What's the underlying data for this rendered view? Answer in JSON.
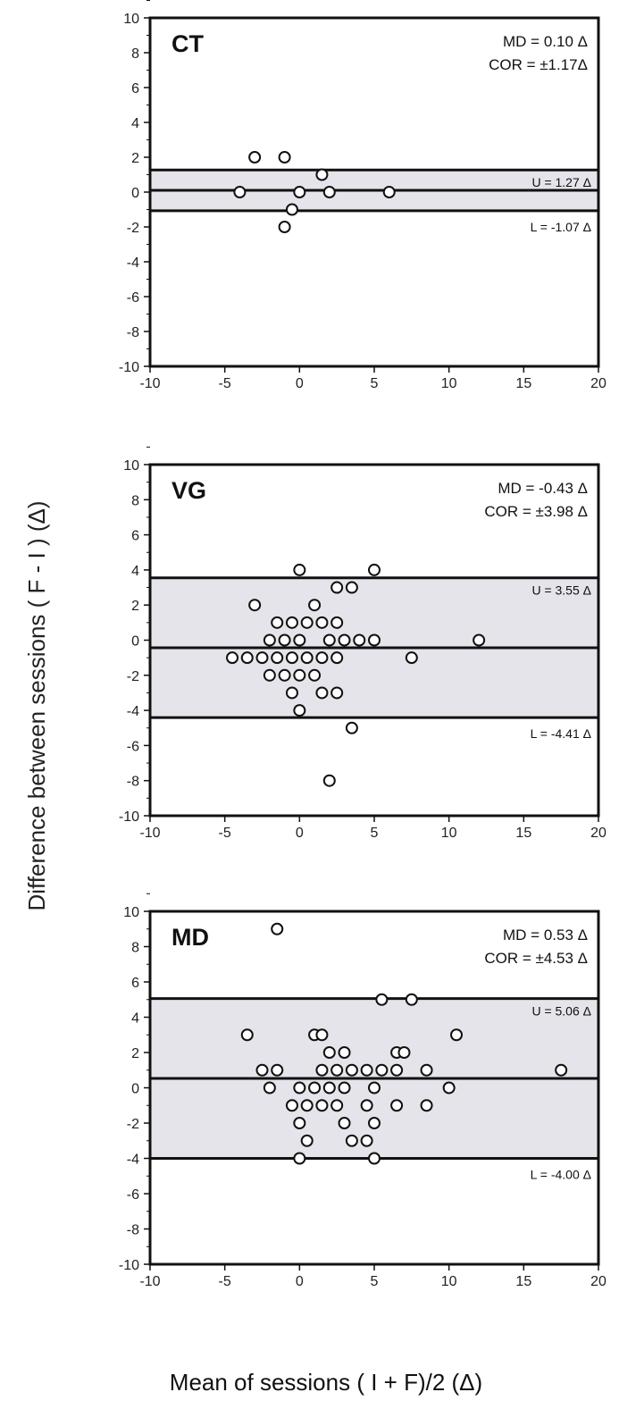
{
  "ylabel": "Difference between sessions ( F - I )   (Δ)",
  "xlabel": "Mean of sessions ( I + F)/2   (Δ)",
  "chart_data": [
    {
      "type": "scatter",
      "title": "CT",
      "md_label": "MD = 0.10 Δ",
      "cor_label": "COR = ±1.17Δ",
      "upper_label": "U = 1.27 Δ",
      "lower_label": "L = -1.07 Δ",
      "md": 0.1,
      "upper": 1.27,
      "lower": -1.07,
      "xlim": [
        -10,
        20
      ],
      "ylim": [
        -10,
        10
      ],
      "xticks": [
        "-10",
        "-5",
        "0",
        "5",
        "10",
        "15",
        "20"
      ],
      "yticks": [
        "10",
        "8",
        "6",
        "4",
        "2",
        "0",
        "-2",
        "-4",
        "-6",
        "-8",
        "-10"
      ],
      "points": [
        [
          -3,
          2
        ],
        [
          -1,
          2
        ],
        [
          1.5,
          1
        ],
        [
          -4,
          0
        ],
        [
          0,
          0
        ],
        [
          2,
          0
        ],
        [
          6,
          0
        ],
        [
          -0.5,
          -1
        ],
        [
          -1,
          -2
        ]
      ]
    },
    {
      "type": "scatter",
      "title": "VG",
      "md_label": "MD = -0.43 Δ",
      "cor_label": "COR = ±3.98 Δ",
      "upper_label": "U = 3.55 Δ",
      "lower_label": "L = -4.41 Δ",
      "md": -0.43,
      "upper": 3.55,
      "lower": -4.41,
      "xlim": [
        -10,
        20
      ],
      "ylim": [
        -10,
        10
      ],
      "xticks": [
        "-10",
        "-5",
        "0",
        "5",
        "10",
        "15",
        "20"
      ],
      "yticks": [
        "10",
        "8",
        "6",
        "4",
        "2",
        "0",
        "-2",
        "-4",
        "-6",
        "-8",
        "-10"
      ],
      "points": [
        [
          0,
          4
        ],
        [
          5,
          4
        ],
        [
          2.5,
          3
        ],
        [
          3.5,
          3
        ],
        [
          -3,
          2
        ],
        [
          1,
          2
        ],
        [
          -1.5,
          1
        ],
        [
          -0.5,
          1
        ],
        [
          0.5,
          1
        ],
        [
          1.5,
          1
        ],
        [
          2.5,
          1
        ],
        [
          -2,
          0
        ],
        [
          -1,
          0
        ],
        [
          0,
          0
        ],
        [
          2,
          0
        ],
        [
          3,
          0
        ],
        [
          4,
          0
        ],
        [
          5,
          0
        ],
        [
          12,
          0
        ],
        [
          -4.5,
          -1
        ],
        [
          -3.5,
          -1
        ],
        [
          -2.5,
          -1
        ],
        [
          -1.5,
          -1
        ],
        [
          -0.5,
          -1
        ],
        [
          0.5,
          -1
        ],
        [
          1.5,
          -1
        ],
        [
          2.5,
          -1
        ],
        [
          7.5,
          -1
        ],
        [
          -2,
          -2
        ],
        [
          -1,
          -2
        ],
        [
          0,
          -2
        ],
        [
          1,
          -2
        ],
        [
          -0.5,
          -3
        ],
        [
          1.5,
          -3
        ],
        [
          2.5,
          -3
        ],
        [
          0,
          -4
        ],
        [
          3.5,
          -5
        ],
        [
          2,
          -8
        ]
      ]
    },
    {
      "type": "scatter",
      "title": "MD",
      "md_label": "MD = 0.53 Δ",
      "cor_label": "COR = ±4.53 Δ",
      "upper_label": "U = 5.06 Δ",
      "lower_label": "L = -4.00 Δ",
      "md": 0.53,
      "upper": 5.06,
      "lower": -4.0,
      "xlim": [
        -10,
        20
      ],
      "ylim": [
        -10,
        10
      ],
      "xticks": [
        "-10",
        "-5",
        "0",
        "5",
        "10",
        "15",
        "20"
      ],
      "yticks": [
        "10",
        "8",
        "6",
        "4",
        "2",
        "0",
        "-2",
        "-4",
        "-6",
        "-8",
        "-10"
      ],
      "points": [
        [
          -1.5,
          9
        ],
        [
          5.5,
          5
        ],
        [
          7.5,
          5
        ],
        [
          -3.5,
          3
        ],
        [
          1,
          3
        ],
        [
          1.5,
          3
        ],
        [
          10.5,
          3
        ],
        [
          2,
          2
        ],
        [
          3,
          2
        ],
        [
          6.5,
          2
        ],
        [
          7,
          2
        ],
        [
          -2.5,
          1
        ],
        [
          -1.5,
          1
        ],
        [
          1.5,
          1
        ],
        [
          2.5,
          1
        ],
        [
          3.5,
          1
        ],
        [
          4.5,
          1
        ],
        [
          5.5,
          1
        ],
        [
          6.5,
          1
        ],
        [
          8.5,
          1
        ],
        [
          17.5,
          1
        ],
        [
          -2,
          0
        ],
        [
          0,
          0
        ],
        [
          1,
          0
        ],
        [
          2,
          0
        ],
        [
          3,
          0
        ],
        [
          5,
          0
        ],
        [
          10,
          0
        ],
        [
          -0.5,
          -1
        ],
        [
          0.5,
          -1
        ],
        [
          1.5,
          -1
        ],
        [
          2.5,
          -1
        ],
        [
          4.5,
          -1
        ],
        [
          6.5,
          -1
        ],
        [
          8.5,
          -1
        ],
        [
          0,
          -2
        ],
        [
          3,
          -2
        ],
        [
          5,
          -2
        ],
        [
          0.5,
          -3
        ],
        [
          3.5,
          -3
        ],
        [
          4.5,
          -3
        ],
        [
          0,
          -4
        ],
        [
          5,
          -4
        ]
      ]
    }
  ]
}
